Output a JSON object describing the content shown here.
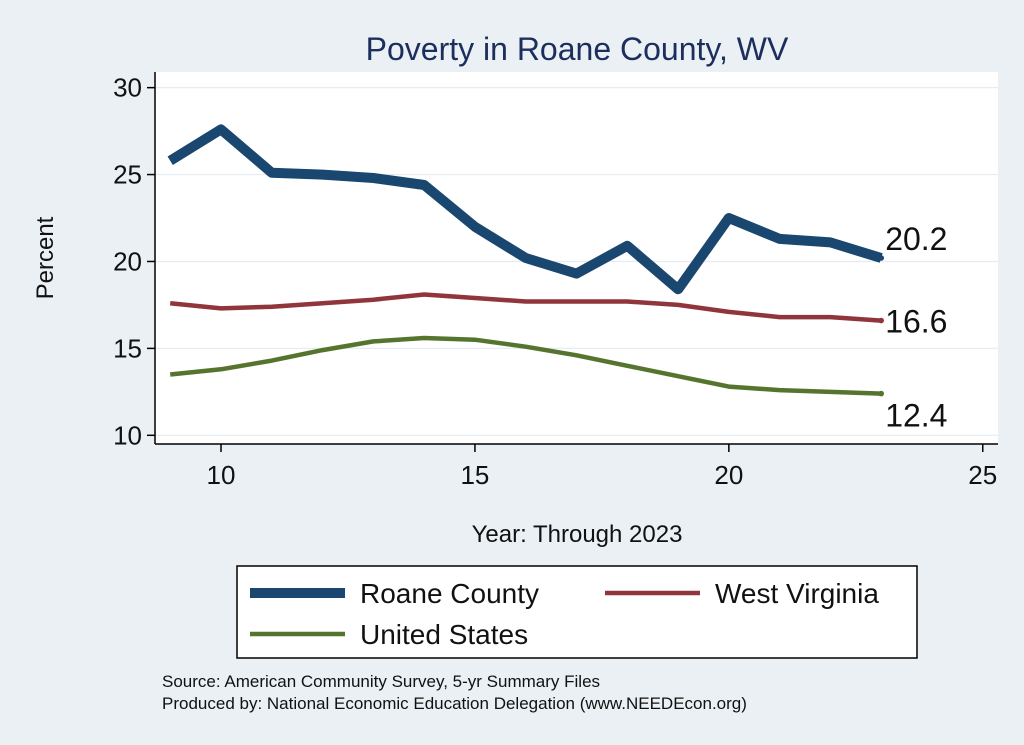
{
  "chart_data": {
    "type": "line",
    "title": "Poverty in Roane County, WV",
    "xlabel": "Year: Through 2023",
    "ylabel": "Percent",
    "xlim": [
      8.7,
      25.3
    ],
    "ylim": [
      9.5,
      30.9
    ],
    "xticks": [
      "10",
      "15",
      "20",
      "25"
    ],
    "yticks": [
      "10",
      "15",
      "20",
      "25",
      "30"
    ],
    "x": [
      9,
      10,
      11,
      12,
      13,
      14,
      15,
      16,
      17,
      18,
      19,
      20,
      21,
      22,
      23
    ],
    "series": [
      {
        "name": "Roane County",
        "color": "#1a476f",
        "values": [
          25.8,
          27.6,
          25.1,
          25.0,
          24.8,
          24.4,
          22.0,
          20.2,
          19.3,
          20.9,
          18.4,
          22.5,
          21.3,
          21.1,
          20.2
        ],
        "end_label": "20.2"
      },
      {
        "name": "West Virginia",
        "color": "#90353b",
        "values": [
          17.6,
          17.3,
          17.4,
          17.6,
          17.8,
          18.1,
          17.9,
          17.7,
          17.7,
          17.7,
          17.5,
          17.1,
          16.8,
          16.8,
          16.6
        ],
        "end_label": "16.6"
      },
      {
        "name": "United States",
        "color": "#55752f",
        "values": [
          13.5,
          13.8,
          14.3,
          14.9,
          15.4,
          15.6,
          15.5,
          15.1,
          14.6,
          14.0,
          13.4,
          12.8,
          12.6,
          12.5,
          12.4
        ],
        "end_label": "12.4"
      }
    ],
    "grid": true,
    "legend_position": "bottom"
  },
  "footer": {
    "source": "Source: American Community Survey, 5-yr Summary Files",
    "produced_by": "Produced by: National Economic Education Delegation (www.NEEDEcon.org)"
  }
}
